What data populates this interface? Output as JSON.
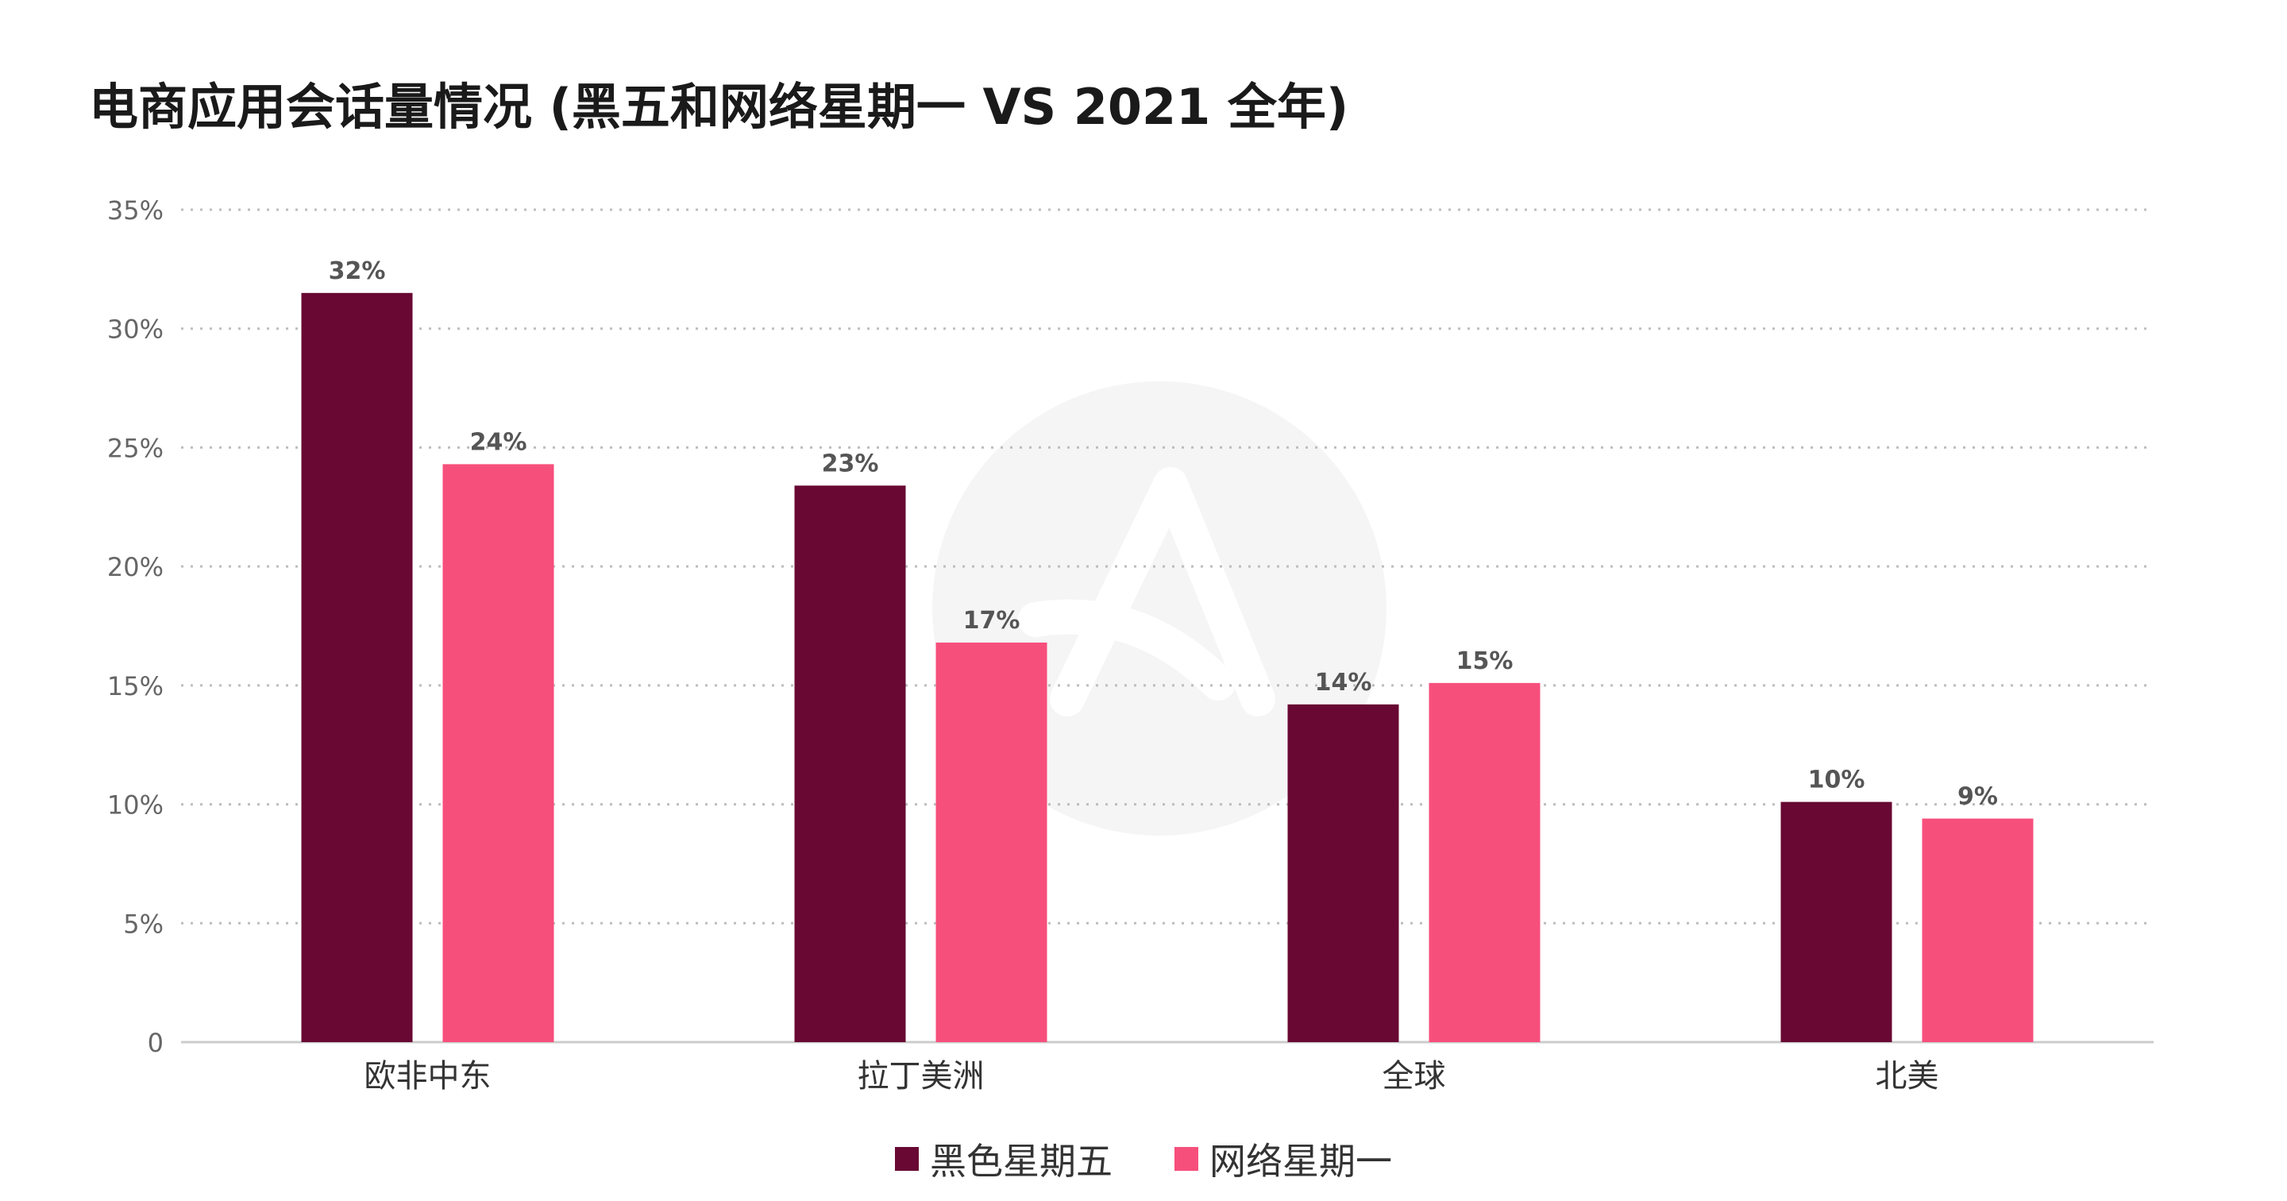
{
  "chart_data": {
    "type": "bar",
    "title": "电商应用会话量情况 (黑五和网络星期一 VS 2021 全年)",
    "categories": [
      "欧非中东",
      "拉丁美洲",
      "全球",
      "北美"
    ],
    "series": [
      {
        "name": "黑色星期五",
        "color": "#680833",
        "values": [
          31.5,
          23.4,
          14.2,
          10.1
        ],
        "labels": [
          "32%",
          "23%",
          "14%",
          "10%"
        ]
      },
      {
        "name": "网络星期一",
        "color": "#f74f7c",
        "values": [
          24.3,
          16.8,
          15.1,
          9.4
        ],
        "labels": [
          "24%",
          "17%",
          "15%",
          "9%"
        ]
      }
    ],
    "yticks": [
      "0",
      "5%",
      "10%",
      "15%",
      "20%",
      "25%",
      "30%",
      "35%"
    ],
    "ylim": [
      0,
      35
    ],
    "grid": true,
    "legend_position": "bottom-center"
  }
}
